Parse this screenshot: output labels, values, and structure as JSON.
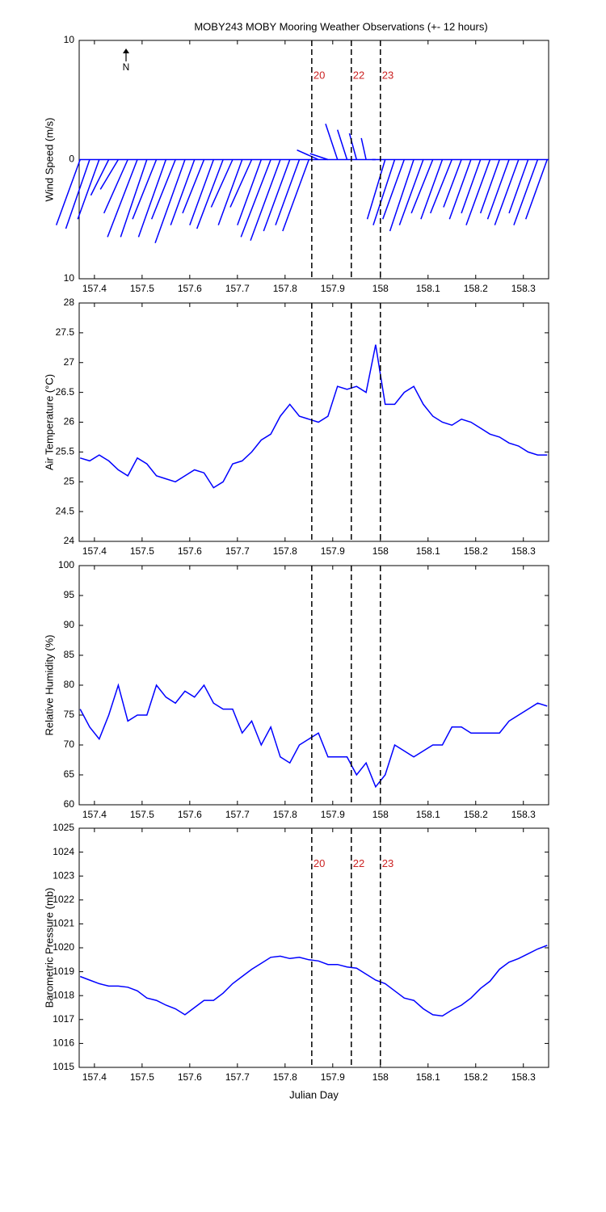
{
  "chart_data": [
    {
      "type": "stick",
      "title": "MOBY243 MOBY Mooring Weather Observations (+- 12 hours)",
      "ylabel": "Wind Speed (m/s)",
      "annotation": "N",
      "color": "#0000ff",
      "x": [
        157.37,
        157.39,
        157.41,
        157.43,
        157.45,
        157.47,
        157.49,
        157.51,
        157.53,
        157.55,
        157.57,
        157.59,
        157.61,
        157.63,
        157.65,
        157.67,
        157.69,
        157.71,
        157.73,
        157.75,
        157.77,
        157.79,
        157.81,
        157.83,
        157.85,
        157.87,
        157.89,
        157.91,
        157.93,
        157.95,
        157.97,
        157.99,
        158.01,
        158.03,
        158.05,
        158.07,
        158.09,
        158.11,
        158.13,
        158.15,
        158.17,
        158.19,
        158.21,
        158.23,
        158.25,
        158.27,
        158.29,
        158.31,
        158.33,
        158.35
      ],
      "u": [
        -2,
        -2,
        -1.8,
        -1.5,
        -1.5,
        -2,
        -2.5,
        -2.2,
        -2,
        -2.3,
        -2,
        -2.5,
        -2,
        -1.8,
        -2,
        -2.2,
        -1.8,
        -2,
        -1.8,
        -2,
        -2.5,
        -2.5,
        -2.2,
        -2,
        -2.2,
        -1.8,
        -1.5,
        -1,
        -0.8,
        -0.6,
        -0.4,
        -0.3,
        -1.5,
        -1.8,
        -1.8,
        -2,
        -2,
        -1.8,
        -1.8,
        -1.8,
        -1.5,
        -1.8,
        -1.6,
        -2,
        -1.6,
        -1.8,
        -2,
        -1.6,
        -2,
        -1.8
      ],
      "v": [
        -5.5,
        -5.8,
        -5,
        -3,
        -2.5,
        -4.5,
        -6.5,
        -6.5,
        -5,
        -6.5,
        -5,
        -7,
        -5.5,
        -4.5,
        -5.5,
        -5.8,
        -4,
        -5.5,
        -4,
        -5.5,
        -6.5,
        -6.8,
        -6,
        -5.5,
        -6,
        0.8,
        0.5,
        3,
        2.5,
        2.2,
        1.8,
        0,
        -5,
        -5.5,
        -5,
        -6,
        -5.5,
        -4.5,
        -5,
        -4.5,
        -4,
        -5,
        -4.5,
        -5.5,
        -4.5,
        -5,
        -5.5,
        -4.5,
        -5.5,
        -5
      ],
      "xlim": [
        157.368,
        158.353
      ],
      "xticks": [
        157.4,
        157.5,
        157.6,
        157.7,
        157.8,
        157.9,
        158,
        158.1,
        158.2,
        158.3
      ],
      "ylim": [
        -10,
        10
      ],
      "yticks": [
        {
          "value": -10,
          "label": "10"
        },
        0,
        10
      ],
      "vlines": [
        157.856,
        157.939,
        158.0
      ],
      "vline_labels": [
        "20",
        "22",
        "23"
      ]
    },
    {
      "type": "line",
      "ylabel": "Air Temperature (°C)",
      "color": "#0000ff",
      "x": [
        157.37,
        157.39,
        157.41,
        157.43,
        157.45,
        157.47,
        157.49,
        157.51,
        157.53,
        157.55,
        157.57,
        157.59,
        157.61,
        157.63,
        157.65,
        157.67,
        157.69,
        157.71,
        157.73,
        157.75,
        157.77,
        157.79,
        157.81,
        157.83,
        157.85,
        157.87,
        157.89,
        157.91,
        157.93,
        157.95,
        157.97,
        157.99,
        158.01,
        158.03,
        158.05,
        158.07,
        158.09,
        158.11,
        158.13,
        158.15,
        158.17,
        158.19,
        158.21,
        158.23,
        158.25,
        158.27,
        158.29,
        158.31,
        158.33,
        158.35
      ],
      "values": [
        25.4,
        25.35,
        25.45,
        25.35,
        25.2,
        25.1,
        25.4,
        25.3,
        25.1,
        25.05,
        25,
        25.1,
        25.2,
        25.15,
        24.9,
        25,
        25.3,
        25.35,
        25.5,
        25.7,
        25.8,
        26.1,
        26.3,
        26.1,
        26.05,
        26,
        26.1,
        26.6,
        26.55,
        26.6,
        26.5,
        27.3,
        26.3,
        26.3,
        26.5,
        26.6,
        26.3,
        26.1,
        26,
        25.95,
        26.05,
        26,
        25.9,
        25.8,
        25.75,
        25.65,
        25.6,
        25.5,
        25.45,
        25.45
      ],
      "xlim": [
        157.368,
        158.353
      ],
      "xticks": [
        157.4,
        157.5,
        157.6,
        157.7,
        157.8,
        157.9,
        158,
        158.1,
        158.2,
        158.3
      ],
      "ylim": [
        24,
        28
      ],
      "yticks": [
        24,
        24.5,
        25,
        25.5,
        26,
        26.5,
        27,
        27.5,
        28
      ],
      "vlines": [
        157.856,
        157.939,
        158.0
      ]
    },
    {
      "type": "line",
      "ylabel": "Relative Humidity (%)",
      "color": "#0000ff",
      "x": [
        157.37,
        157.39,
        157.41,
        157.43,
        157.45,
        157.47,
        157.49,
        157.51,
        157.53,
        157.55,
        157.57,
        157.59,
        157.61,
        157.63,
        157.65,
        157.67,
        157.69,
        157.71,
        157.73,
        157.75,
        157.77,
        157.79,
        157.81,
        157.83,
        157.85,
        157.87,
        157.89,
        157.91,
        157.93,
        157.95,
        157.97,
        157.99,
        158.01,
        158.03,
        158.05,
        158.07,
        158.09,
        158.11,
        158.13,
        158.15,
        158.17,
        158.19,
        158.21,
        158.23,
        158.25,
        158.27,
        158.29,
        158.31,
        158.33,
        158.35
      ],
      "values": [
        76,
        73,
        71,
        75,
        80,
        74,
        75,
        75,
        80,
        78,
        77,
        79,
        78,
        80,
        77,
        76,
        76,
        72,
        74,
        70,
        73,
        68,
        67,
        70,
        71,
        72,
        68,
        68,
        68,
        65,
        67,
        63,
        65,
        70,
        69,
        68,
        69,
        70,
        70,
        73,
        73,
        72,
        72,
        72,
        72,
        74,
        75,
        76,
        77,
        76.5
      ],
      "xlim": [
        157.368,
        158.353
      ],
      "xticks": [
        157.4,
        157.5,
        157.6,
        157.7,
        157.8,
        157.9,
        158,
        158.1,
        158.2,
        158.3
      ],
      "ylim": [
        60,
        100
      ],
      "yticks": [
        60,
        65,
        70,
        75,
        80,
        85,
        90,
        95,
        100
      ],
      "vlines": [
        157.856,
        157.939,
        158.0
      ]
    },
    {
      "type": "line",
      "ylabel": "Barometric Pressure (mb)",
      "xlabel": "Julian Day",
      "color": "#0000ff",
      "x": [
        157.37,
        157.39,
        157.41,
        157.43,
        157.45,
        157.47,
        157.49,
        157.51,
        157.53,
        157.55,
        157.57,
        157.59,
        157.61,
        157.63,
        157.65,
        157.67,
        157.69,
        157.71,
        157.73,
        157.75,
        157.77,
        157.79,
        157.81,
        157.83,
        157.85,
        157.87,
        157.89,
        157.91,
        157.93,
        157.95,
        157.97,
        157.99,
        158.01,
        158.03,
        158.05,
        158.07,
        158.09,
        158.11,
        158.13,
        158.15,
        158.17,
        158.19,
        158.21,
        158.23,
        158.25,
        158.27,
        158.29,
        158.31,
        158.33,
        158.35
      ],
      "values": [
        1018.8,
        1018.65,
        1018.5,
        1018.4,
        1018.4,
        1018.35,
        1018.2,
        1017.9,
        1017.8,
        1017.6,
        1017.45,
        1017.2,
        1017.5,
        1017.8,
        1017.8,
        1018.1,
        1018.5,
        1018.8,
        1019.1,
        1019.35,
        1019.6,
        1019.65,
        1019.55,
        1019.6,
        1019.5,
        1019.45,
        1019.3,
        1019.3,
        1019.2,
        1019.15,
        1018.9,
        1018.65,
        1018.5,
        1018.2,
        1017.9,
        1017.8,
        1017.45,
        1017.2,
        1017.15,
        1017.4,
        1017.6,
        1017.9,
        1018.3,
        1018.6,
        1019.1,
        1019.4,
        1019.55,
        1019.75,
        1019.95,
        1020.1
      ],
      "xlim": [
        157.368,
        158.353
      ],
      "xticks": [
        157.4,
        157.5,
        157.6,
        157.7,
        157.8,
        157.9,
        158,
        158.1,
        158.2,
        158.3
      ],
      "ylim": [
        1015,
        1025
      ],
      "yticks": [
        1015,
        1016,
        1017,
        1018,
        1019,
        1020,
        1021,
        1022,
        1023,
        1024,
        1025
      ],
      "vlines": [
        157.856,
        157.939,
        158.0
      ],
      "vline_labels": [
        "20",
        "22",
        "23"
      ]
    }
  ]
}
